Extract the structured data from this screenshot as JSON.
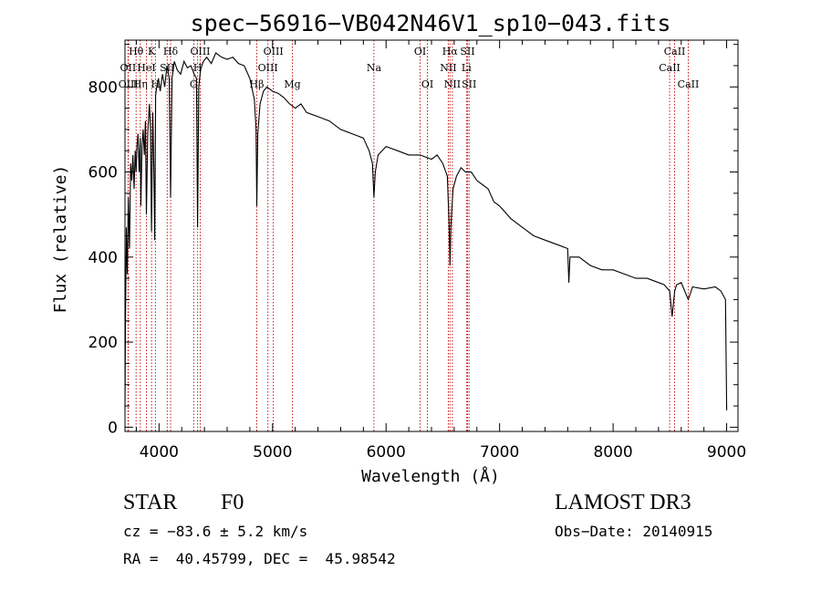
{
  "chart_data": {
    "type": "line",
    "title": "spec−56916−VB042N46V1_sp10−043.fits",
    "xlabel": "Wavelength (Å)",
    "ylabel": "Flux (relative)",
    "xlim": [
      3700,
      9100
    ],
    "ylim": [
      -10,
      910
    ],
    "xticks": [
      4000,
      5000,
      6000,
      7000,
      8000,
      9000
    ],
    "yticks": [
      0,
      200,
      400,
      600,
      800
    ],
    "series": [
      {
        "name": "flux",
        "x": [
          3700,
          3705,
          3712,
          3720,
          3730,
          3740,
          3750,
          3760,
          3770,
          3780,
          3790,
          3798,
          3805,
          3815,
          3825,
          3835,
          3840,
          3850,
          3860,
          3870,
          3880,
          3889,
          3900,
          3915,
          3925,
          3934,
          3945,
          3955,
          3962,
          3970,
          3980,
          3995,
          4010,
          4030,
          4050,
          4070,
          4090,
          4102,
          4115,
          4135,
          4160,
          4190,
          4220,
          4250,
          4280,
          4310,
          4330,
          4340,
          4350,
          4365,
          4390,
          4420,
          4460,
          4500,
          4550,
          4600,
          4650,
          4700,
          4750,
          4800,
          4840,
          4855,
          4861,
          4870,
          4890,
          4920,
          4950,
          5000,
          5050,
          5100,
          5150,
          5200,
          5250,
          5300,
          5400,
          5500,
          5600,
          5700,
          5800,
          5850,
          5880,
          5893,
          5905,
          5930,
          6000,
          6100,
          6200,
          6300,
          6400,
          6450,
          6500,
          6540,
          6555,
          6563,
          6570,
          6590,
          6620,
          6660,
          6700,
          6750,
          6800,
          6850,
          6900,
          6950,
          7000,
          7100,
          7200,
          7300,
          7400,
          7500,
          7600,
          7610,
          7620,
          7700,
          7800,
          7900,
          8000,
          8100,
          8200,
          8300,
          8400,
          8450,
          8498,
          8520,
          8542,
          8560,
          8600,
          8662,
          8700,
          8800,
          8900,
          8950,
          8990,
          9000
        ],
        "y": [
          40,
          260,
          470,
          360,
          540,
          420,
          620,
          580,
          640,
          560,
          650,
          600,
          660,
          690,
          600,
          680,
          520,
          660,
          700,
          640,
          720,
          500,
          690,
          760,
          700,
          460,
          740,
          600,
          440,
          780,
          800,
          820,
          790,
          830,
          800,
          850,
          820,
          540,
          820,
          860,
          840,
          830,
          860,
          845,
          850,
          830,
          820,
          470,
          800,
          840,
          860,
          870,
          855,
          880,
          870,
          865,
          870,
          855,
          850,
          820,
          770,
          700,
          520,
          690,
          760,
          790,
          800,
          790,
          785,
          775,
          760,
          750,
          760,
          740,
          730,
          720,
          700,
          690,
          680,
          650,
          620,
          540,
          600,
          640,
          660,
          650,
          640,
          640,
          630,
          640,
          620,
          590,
          480,
          380,
          470,
          560,
          590,
          610,
          600,
          600,
          580,
          570,
          560,
          530,
          520,
          490,
          470,
          450,
          440,
          430,
          420,
          340,
          400,
          400,
          380,
          370,
          370,
          360,
          350,
          350,
          340,
          335,
          320,
          260,
          320,
          335,
          340,
          300,
          330,
          325,
          330,
          320,
          300,
          40
        ],
        "color": "#000000"
      }
    ],
    "spectral_lines": [
      {
        "label": "Hθ",
        "wavelength": 3798,
        "row": 0
      },
      {
        "label": "K",
        "wavelength": 3934,
        "row": 0
      },
      {
        "label": "Hδ",
        "wavelength": 4102,
        "row": 0
      },
      {
        "label": "OII",
        "wavelength": 3727,
        "row": 1
      },
      {
        "label": "HeI",
        "wavelength": 3889,
        "row": 1
      },
      {
        "label": "SII",
        "wavelength": 4072,
        "row": 1
      },
      {
        "label": "OIII",
        "wavelength": 3730,
        "row": 2
      },
      {
        "label": "Hη",
        "wavelength": 3835,
        "row": 2
      },
      {
        "label": "H",
        "wavelength": 3968,
        "row": 2
      },
      {
        "label": "OIII",
        "wavelength": 4363,
        "row": 0
      },
      {
        "label": "H",
        "wavelength": 4340,
        "row": 1
      },
      {
        "label": "G",
        "wavelength": 4305,
        "row": 2
      },
      {
        "label": "OIII",
        "wavelength": 5007,
        "row": 0
      },
      {
        "label": "OIII",
        "wavelength": 4959,
        "row": 1
      },
      {
        "label": "Hβ",
        "wavelength": 4861,
        "row": 2
      },
      {
        "label": "Mg",
        "wavelength": 5175,
        "row": 2
      },
      {
        "label": "Na",
        "wavelength": 5893,
        "row": 1
      },
      {
        "label": "OI",
        "wavelength": 6300,
        "row": 0
      },
      {
        "label": "OI",
        "wavelength": 6364,
        "row": 2
      },
      {
        "label": "Hα",
        "wavelength": 6563,
        "row": 0
      },
      {
        "label": "NII",
        "wavelength": 6548,
        "row": 1
      },
      {
        "label": "NII",
        "wavelength": 6584,
        "row": 2
      },
      {
        "label": "SII",
        "wavelength": 6717,
        "row": 0
      },
      {
        "label": "Li",
        "wavelength": 6708,
        "row": 1
      },
      {
        "label": "SII",
        "wavelength": 6731,
        "row": 2
      },
      {
        "label": "CaII",
        "wavelength": 8542,
        "row": 0
      },
      {
        "label": "CaII",
        "wavelength": 8498,
        "row": 1
      },
      {
        "label": "CaII",
        "wavelength": 8662,
        "row": 2
      }
    ]
  },
  "info": {
    "class": "STAR",
    "subclass": "F0",
    "survey": "LAMOST DR3",
    "cz": "cz = −83.6 ± 5.2 km/s",
    "obs_date": "Obs−Date: 20140915",
    "coords": "RA =  40.45799, DEC =  45.98542"
  }
}
